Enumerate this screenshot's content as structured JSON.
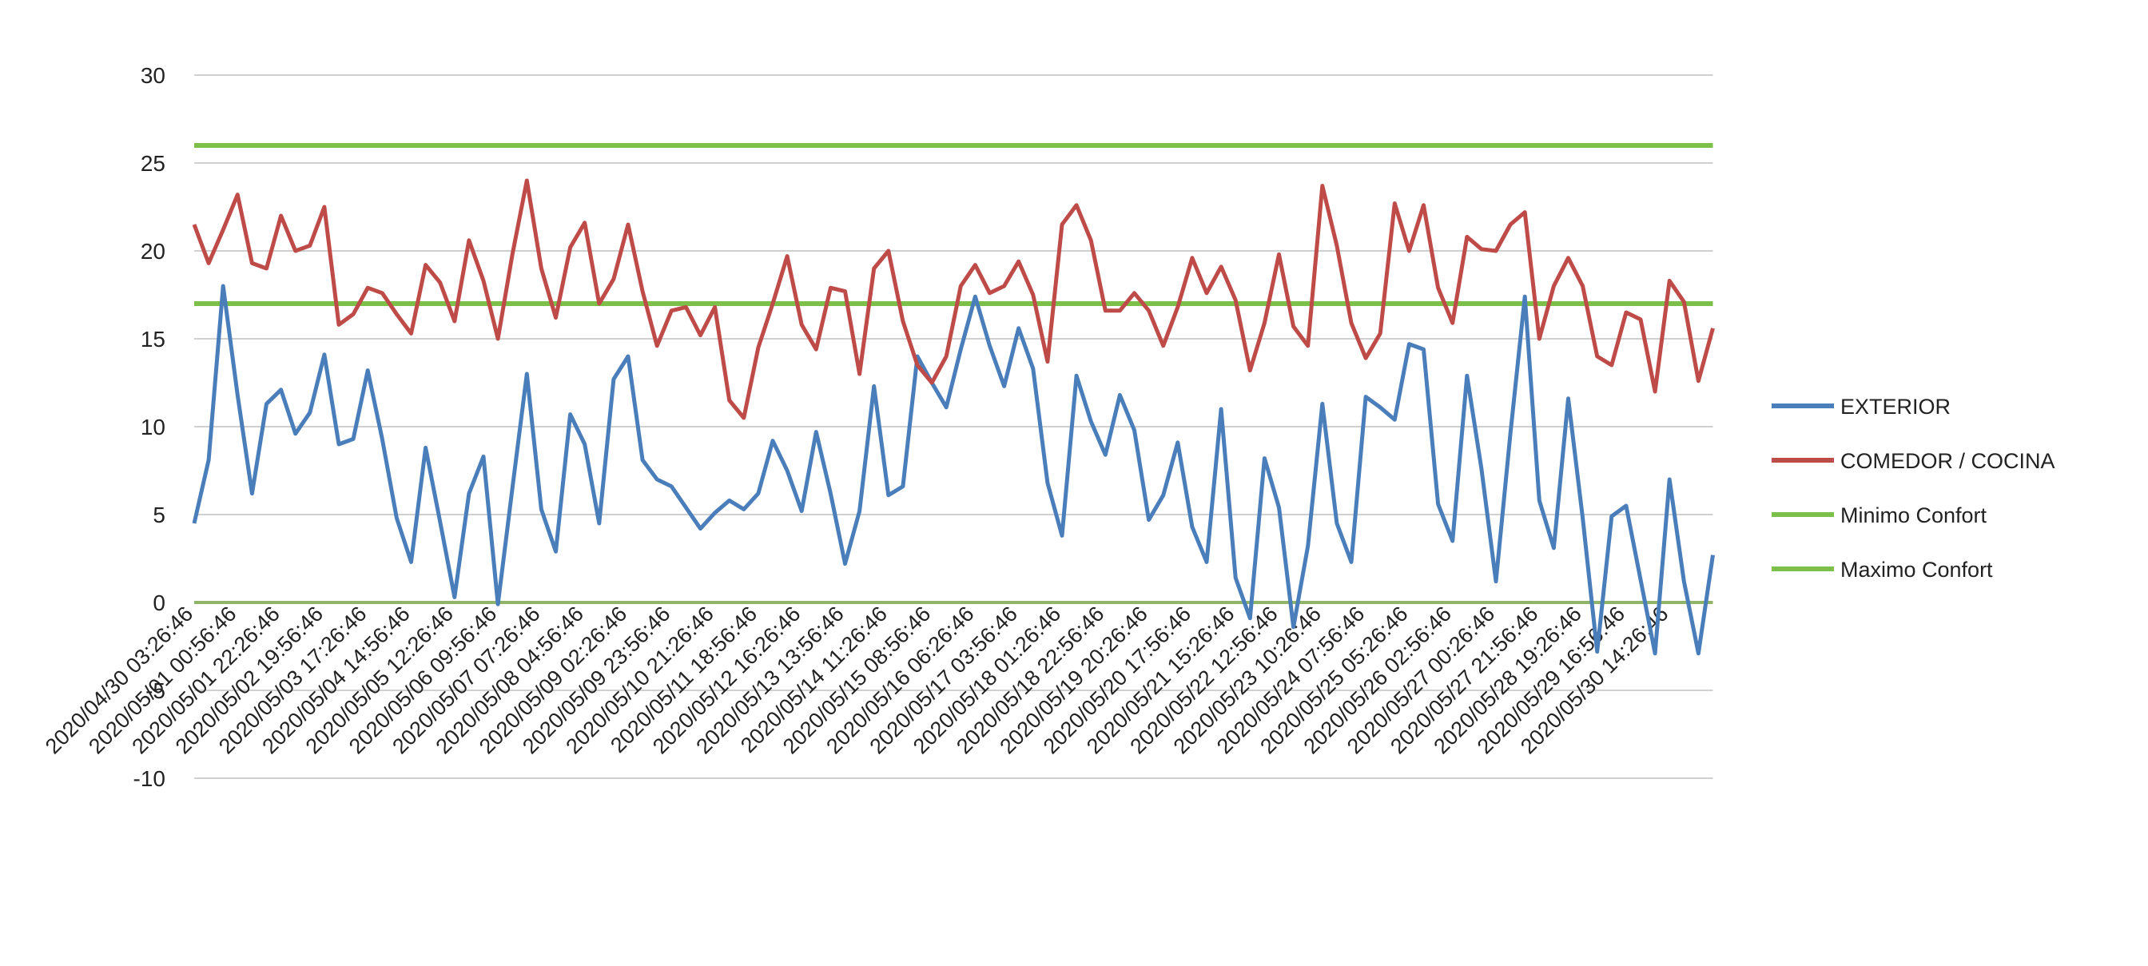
{
  "chart_data": {
    "type": "line",
    "categories": [
      "2020/04/30 03:26:46",
      null,
      null,
      "2020/05/01 00:56:46",
      null,
      null,
      "2020/05/01 22:26:46",
      null,
      null,
      "2020/05/02 19:56:46",
      null,
      null,
      "2020/05/03 17:26:46",
      null,
      null,
      "2020/05/04 14:56:46",
      null,
      null,
      "2020/05/05 12:26:46",
      null,
      null,
      "2020/05/06 09:56:46",
      null,
      null,
      "2020/05/07 07:26:46",
      null,
      null,
      "2020/05/08 04:56:46",
      null,
      null,
      "2020/05/09 02:26:46",
      null,
      null,
      "2020/05/09 23:56:46",
      null,
      null,
      "2020/05/10 21:26:46",
      null,
      null,
      "2020/05/11 18:56:46",
      null,
      null,
      "2020/05/12 16:26:46",
      null,
      null,
      "2020/05/13 13:56:46",
      null,
      null,
      "2020/05/14 11:26:46",
      null,
      null,
      "2020/05/15 08:56:46",
      null,
      null,
      "2020/05/16 06:26:46",
      null,
      null,
      "2020/05/17 03:56:46",
      null,
      null,
      "2020/05/18 01:26:46",
      null,
      null,
      "2020/05/18 22:56:46",
      null,
      null,
      "2020/05/19 20:26:46",
      null,
      null,
      "2020/05/20 17:56:46",
      null,
      null,
      "2020/05/21 15:26:46",
      null,
      null,
      "2020/05/22 12:56:46",
      null,
      null,
      "2020/05/23 10:26:46",
      null,
      null,
      "2020/05/24 07:56:46",
      null,
      null,
      "2020/05/25 05:26:46",
      null,
      null,
      "2020/05/26 02:56:46",
      null,
      null,
      "2020/05/27 00:26:46",
      null,
      null,
      "2020/05/27 21:56:46",
      null,
      null,
      "2020/05/28 19:26:46",
      null,
      null,
      "2020/05/29 16:56:46",
      null,
      null,
      "2020/05/30 14:26:46",
      null,
      null,
      null
    ],
    "series": [
      {
        "name": "EXTERIOR",
        "color": "#4a7ebb",
        "values": [
          4.5,
          8.1,
          18,
          11.8,
          6.2,
          11.3,
          12.1,
          9.6,
          10.8,
          14.1,
          9,
          9.3,
          13.2,
          9.3,
          4.8,
          2.3,
          8.8,
          4.6,
          0.3,
          6.2,
          8.3,
          -0.1,
          6.5,
          13,
          5.3,
          2.9,
          10.7,
          9,
          4.5,
          12.7,
          14,
          8.1,
          7,
          6.6,
          5.4,
          4.2,
          5.1,
          5.8,
          5.3,
          6.2,
          9.2,
          7.5,
          5.2,
          9.7,
          6.2,
          2.2,
          5.2,
          12.3,
          6.1,
          6.6,
          14,
          12.5,
          11.1,
          14.4,
          17.4,
          14.6,
          12.3,
          15.6,
          13.3,
          6.8,
          3.8,
          12.9,
          10.3,
          8.4,
          11.8,
          9.8,
          4.7,
          6.1,
          9.1,
          4.3,
          2.3,
          11,
          1.4,
          -0.9,
          8.2,
          5.4,
          -1.4,
          3.2,
          11.3,
          4.5,
          2.3,
          11.7,
          11.1,
          10.4,
          14.7,
          14.4,
          5.6,
          3.5,
          12.9,
          7.6,
          1.2,
          9.6,
          17.4,
          5.8,
          3.1,
          11.6,
          4.8,
          -2.8,
          4.9,
          5.5,
          1.3,
          -2.9,
          7,
          1.2,
          -2.9,
          2.7
        ]
      },
      {
        "name": "COMEDOR / COCINA",
        "color": "#be4b48",
        "values": [
          21.5,
          19.3,
          21.2,
          23.2,
          19.3,
          19,
          22,
          20,
          20.3,
          22.5,
          15.8,
          16.4,
          17.9,
          17.6,
          16.4,
          15.3,
          19.2,
          18.2,
          16,
          20.6,
          18.3,
          15,
          19.8,
          24,
          19,
          16.2,
          20.2,
          21.6,
          17,
          18.4,
          21.5,
          17.7,
          14.6,
          16.6,
          16.8,
          15.2,
          16.8,
          11.5,
          10.5,
          14.5,
          17,
          19.7,
          15.8,
          14.4,
          17.9,
          17.7,
          13,
          19,
          20,
          16,
          13.5,
          12.5,
          14,
          18,
          19.2,
          17.6,
          18,
          19.4,
          17.5,
          13.7,
          21.5,
          22.6,
          20.6,
          16.6,
          16.6,
          17.6,
          16.6,
          14.6,
          16.8,
          19.6,
          17.6,
          19.1,
          17.2,
          13.2,
          15.9,
          19.8,
          15.7,
          14.6,
          23.7,
          20.3,
          15.9,
          13.9,
          15.3,
          22.7,
          20,
          22.6,
          17.9,
          15.9,
          20.8,
          20.1,
          20,
          21.5,
          22.2,
          15,
          18,
          19.6,
          18,
          14,
          13.5,
          16.5,
          16.1,
          12,
          18.3,
          17.1,
          12.6,
          15.6
        ]
      }
    ],
    "reference_lines": [
      {
        "name": "Minimo Confort",
        "color": "#7cc04a",
        "value": 17
      },
      {
        "name": "Maximo Confort",
        "color": "#7cc04a",
        "value": 26
      }
    ],
    "ylim": [
      -10,
      30
    ],
    "yticks": [
      -10,
      -5,
      0,
      5,
      10,
      15,
      20,
      25,
      30
    ],
    "grid": true,
    "legend": "right"
  }
}
